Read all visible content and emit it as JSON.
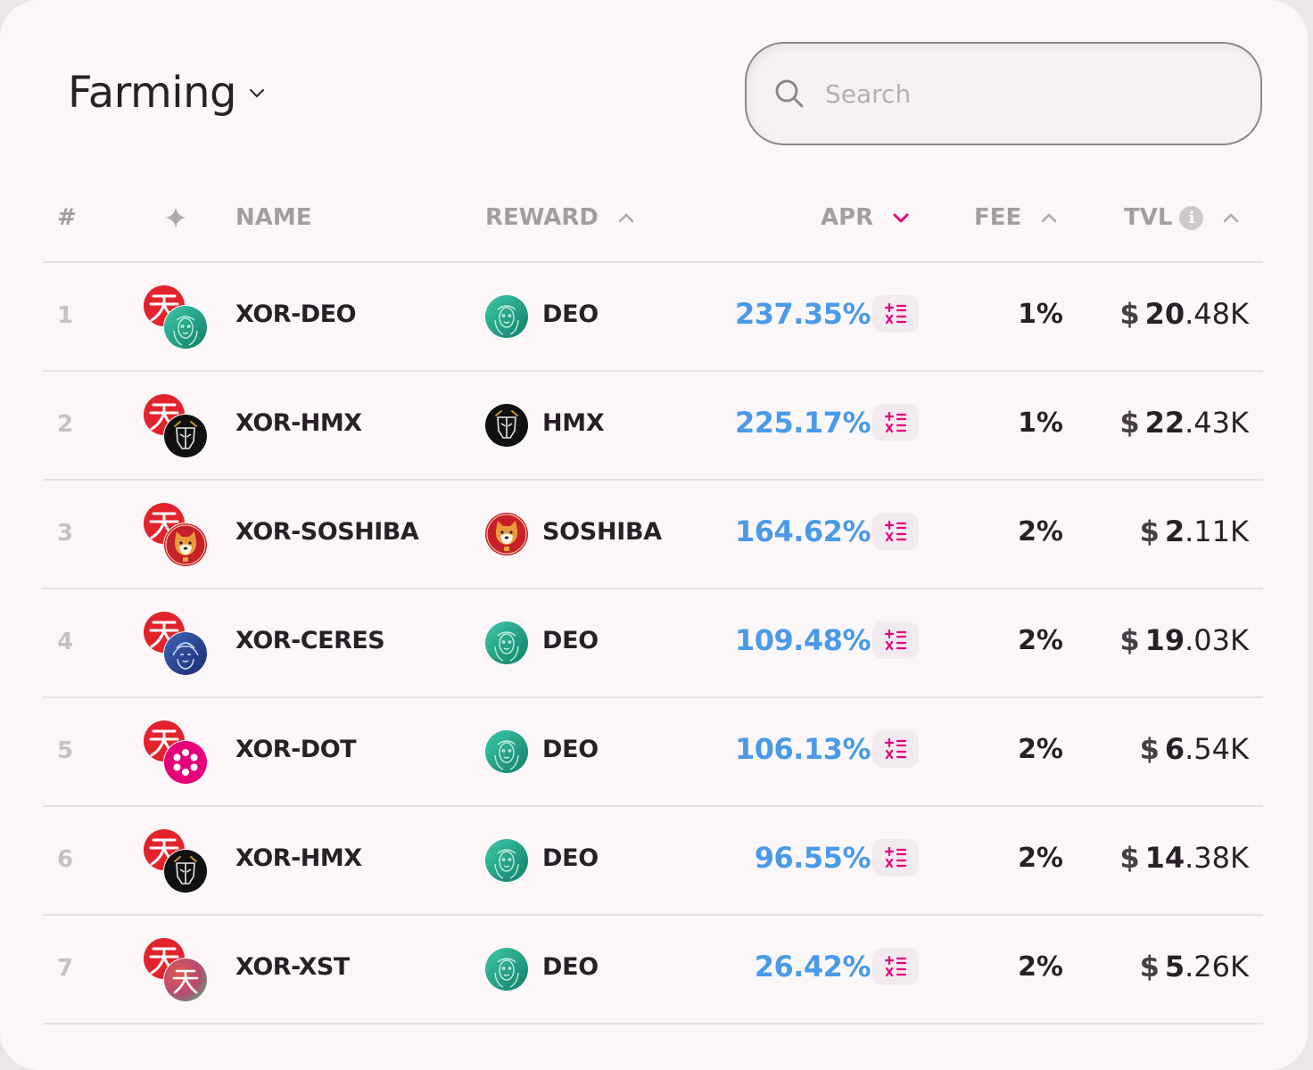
{
  "header": {
    "title": "Farming",
    "search_placeholder": "Search"
  },
  "columns": {
    "index": "#",
    "name": "NAME",
    "reward": "REWARD",
    "apr": "APR",
    "fee": "FEE",
    "tvl": "TVL",
    "info": "i"
  },
  "colors": {
    "accent": "#e5007a",
    "apr_blue": "#4a9ae8",
    "xor_red": "#e3232c",
    "deo_green": "#1fa888"
  },
  "rows": [
    {
      "index": "1",
      "pair": "XOR-DEO",
      "second_token": "deo",
      "reward": "DEO",
      "reward_token": "deo",
      "apr": "237.35%",
      "fee": "1%",
      "tvl_currency": "$",
      "tvl_int": "20",
      "tvl_rest": ".48K"
    },
    {
      "index": "2",
      "pair": "XOR-HMX",
      "second_token": "hmx",
      "reward": "HMX",
      "reward_token": "hmx",
      "apr": "225.17%",
      "fee": "1%",
      "tvl_currency": "$",
      "tvl_int": "22",
      "tvl_rest": ".43K"
    },
    {
      "index": "3",
      "pair": "XOR-SOSHIBA",
      "second_token": "soshiba",
      "reward": "SOSHIBA",
      "reward_token": "soshiba",
      "apr": "164.62%",
      "fee": "2%",
      "tvl_currency": "$",
      "tvl_int": "2",
      "tvl_rest": ".11K"
    },
    {
      "index": "4",
      "pair": "XOR-CERES",
      "second_token": "ceres",
      "reward": "DEO",
      "reward_token": "deo",
      "apr": "109.48%",
      "fee": "2%",
      "tvl_currency": "$",
      "tvl_int": "19",
      "tvl_rest": ".03K"
    },
    {
      "index": "5",
      "pair": "XOR-DOT",
      "second_token": "dot",
      "reward": "DEO",
      "reward_token": "deo",
      "apr": "106.13%",
      "fee": "2%",
      "tvl_currency": "$",
      "tvl_int": "6",
      "tvl_rest": ".54K"
    },
    {
      "index": "6",
      "pair": "XOR-HMX",
      "second_token": "hmx",
      "reward": "DEO",
      "reward_token": "deo",
      "apr": "96.55%",
      "fee": "2%",
      "tvl_currency": "$",
      "tvl_int": "14",
      "tvl_rest": ".38K"
    },
    {
      "index": "7",
      "pair": "XOR-XST",
      "second_token": "xst",
      "reward": "DEO",
      "reward_token": "deo",
      "apr": "26.42%",
      "fee": "2%",
      "tvl_currency": "$",
      "tvl_int": "5",
      "tvl_rest": ".26K"
    }
  ]
}
